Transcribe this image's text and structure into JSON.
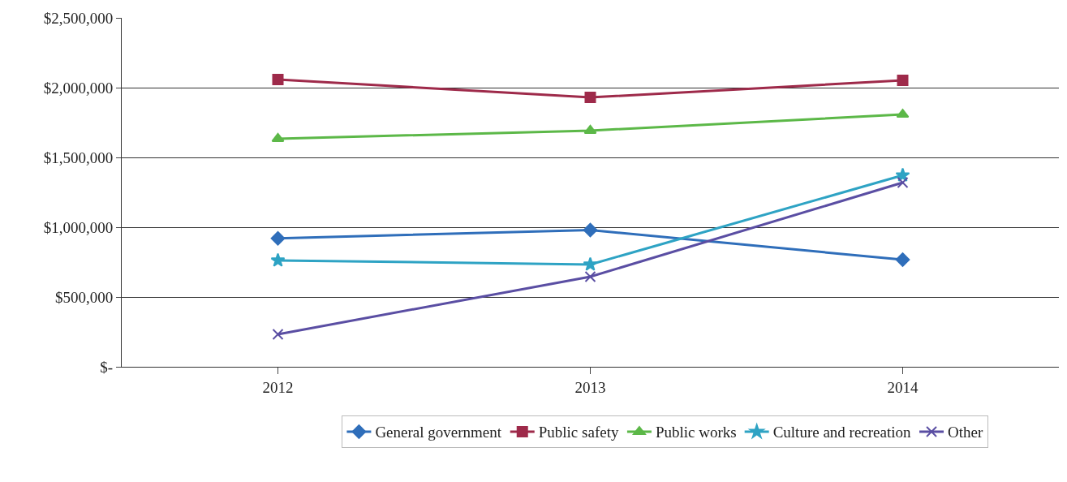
{
  "chart_data": {
    "type": "line",
    "categories": [
      "2012",
      "2013",
      "2014"
    ],
    "series": [
      {
        "name": "General government",
        "color": "#2f6eba",
        "marker": "diamond",
        "values": [
          920000,
          980000,
          767000
        ]
      },
      {
        "name": "Public safety",
        "color": "#9e2a4a",
        "marker": "square",
        "values": [
          2058000,
          1930000,
          2052000
        ]
      },
      {
        "name": "Public works",
        "color": "#5cb848",
        "marker": "triangle",
        "values": [
          1634000,
          1692000,
          1808000
        ]
      },
      {
        "name": "Culture and recreation",
        "color": "#2ea3c4",
        "marker": "star",
        "values": [
          762000,
          733000,
          1372000
        ]
      },
      {
        "name": "Other",
        "color": "#5a4ea3",
        "marker": "cross",
        "values": [
          233000,
          645000,
          1320000
        ]
      }
    ],
    "ylim": [
      0,
      2500000
    ],
    "yticks": [
      {
        "value": 0,
        "label": "$-"
      },
      {
        "value": 500000,
        "label": "$500,000"
      },
      {
        "value": 1000000,
        "label": "$1,000,000"
      },
      {
        "value": 1500000,
        "label": "$1,500,000"
      },
      {
        "value": 2000000,
        "label": "$2,000,000"
      },
      {
        "value": 2500000,
        "label": "$2,500,000"
      }
    ],
    "grid": "y",
    "legend": "bottom",
    "line_style": "solid"
  }
}
